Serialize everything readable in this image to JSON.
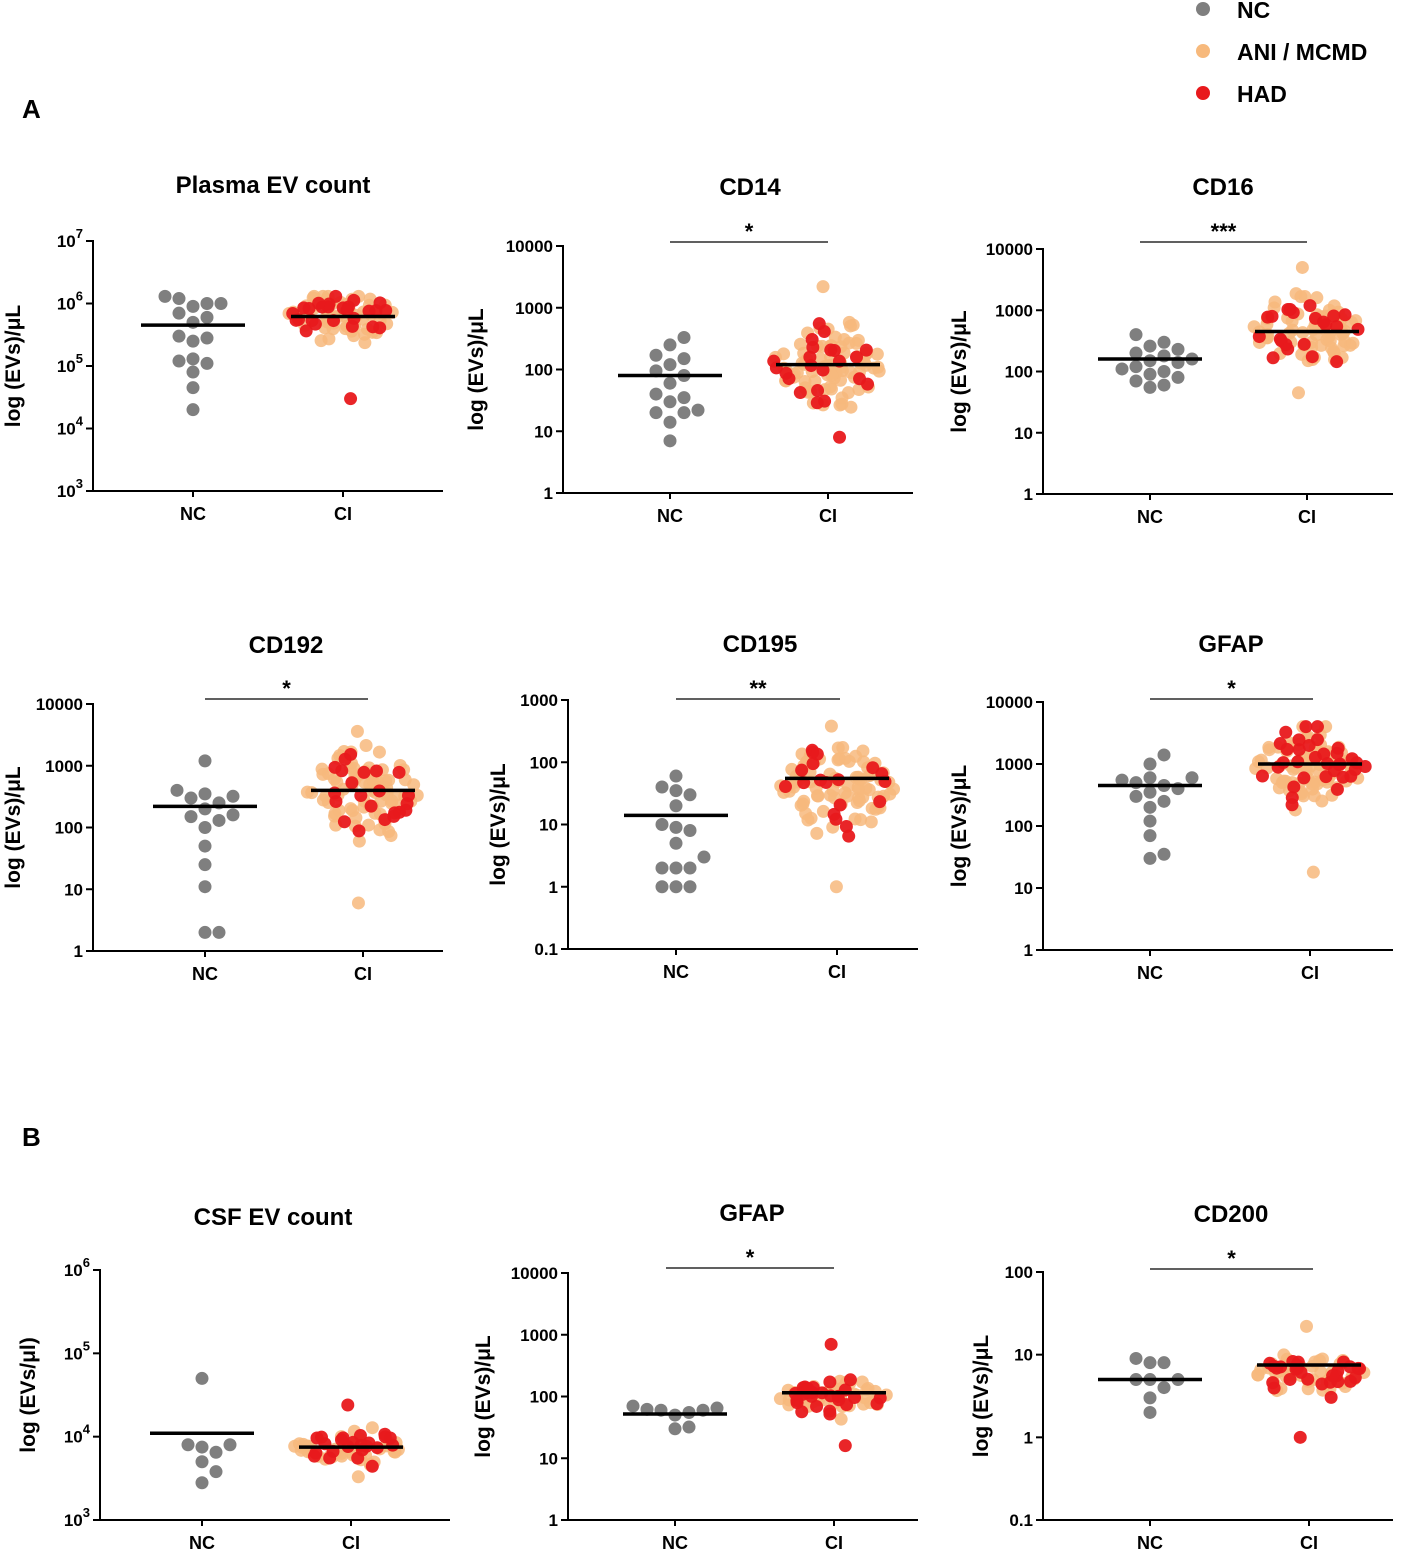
{
  "panels": [
    {
      "label": "A"
    },
    {
      "label": "B"
    }
  ],
  "legend": [
    {
      "name": "NC",
      "color": "#7f7f7f"
    },
    {
      "name": "ANI / MCMD",
      "color": "#f7b97c"
    },
    {
      "name": "HAD",
      "color": "#e8191c"
    }
  ],
  "chart_data": [
    {
      "type": "scatter",
      "title": "Plasma EV count",
      "ylabel": "log (EVs)/μL",
      "ylim": [
        1000,
        10000000
      ],
      "yticks": [
        {
          "v": 1000,
          "b": "10",
          "e": "3"
        },
        {
          "v": 10000,
          "b": "10",
          "e": "4"
        },
        {
          "v": 100000,
          "b": "10",
          "e": "5"
        },
        {
          "v": 1000000,
          "b": "10",
          "e": "6"
        },
        {
          "v": 10000000,
          "b": "10",
          "e": "7"
        }
      ],
      "categories": [
        "NC",
        "CI"
      ],
      "significance": "",
      "medians": [
        450000,
        620000
      ],
      "NC": [
        20000,
        45000,
        80000,
        110000,
        120000,
        130000,
        250000,
        280000,
        300000,
        500000,
        600000,
        700000,
        900000,
        1000000,
        1000000,
        1200000,
        1300000
      ],
      "CI": {
        "n": 90,
        "lo": 30000,
        "hi": 1300000,
        "center": 620000,
        "spread": 0.55,
        "had_frac": 0.3
      }
    },
    {
      "type": "scatter",
      "title": "CD14",
      "ylabel": "log (EVs)/μL",
      "ylim": [
        1,
        10000
      ],
      "yticks": [
        {
          "v": 1,
          "t": "1"
        },
        {
          "v": 10,
          "t": "10"
        },
        {
          "v": 100,
          "t": "100"
        },
        {
          "v": 1000,
          "t": "1000"
        },
        {
          "v": 10000,
          "t": "10000"
        }
      ],
      "categories": [
        "NC",
        "CI"
      ],
      "significance": "*",
      "medians": [
        80,
        120
      ],
      "NC": [
        7,
        14,
        20,
        20,
        22,
        30,
        35,
        40,
        60,
        80,
        95,
        120,
        150,
        170,
        250,
        330
      ],
      "CI": {
        "n": 100,
        "lo": 8,
        "hi": 2200,
        "center": 120,
        "spread": 0.9,
        "had_frac": 0.25
      }
    },
    {
      "type": "scatter",
      "title": "CD16",
      "ylabel": "log (EVs)/μL",
      "ylim": [
        1,
        10000
      ],
      "yticks": [
        {
          "v": 1,
          "t": "1"
        },
        {
          "v": 10,
          "t": "10"
        },
        {
          "v": 100,
          "t": "100"
        },
        {
          "v": 1000,
          "t": "1000"
        },
        {
          "v": 10000,
          "t": "10000"
        }
      ],
      "categories": [
        "NC",
        "CI"
      ],
      "significance": "***",
      "medians": [
        160,
        450
      ],
      "NC": [
        55,
        60,
        70,
        80,
        90,
        100,
        110,
        120,
        140,
        150,
        160,
        180,
        200,
        230,
        260,
        300,
        400
      ],
      "CI": {
        "n": 100,
        "lo": 45,
        "hi": 5000,
        "center": 450,
        "spread": 0.8,
        "had_frac": 0.25
      }
    },
    {
      "type": "scatter",
      "title": "CD192",
      "ylabel": "log (EVs)/μL",
      "ylim": [
        1,
        10000
      ],
      "yticks": [
        {
          "v": 1,
          "t": "1"
        },
        {
          "v": 10,
          "t": "10"
        },
        {
          "v": 100,
          "t": "100"
        },
        {
          "v": 1000,
          "t": "1000"
        },
        {
          "v": 10000,
          "t": "10000"
        }
      ],
      "categories": [
        "NC",
        "CI"
      ],
      "significance": "*",
      "medians": [
        220,
        400
      ],
      "NC": [
        2,
        2,
        11,
        25,
        50,
        100,
        130,
        150,
        160,
        200,
        250,
        300,
        320,
        350,
        400,
        1200
      ],
      "CI": {
        "n": 100,
        "lo": 6,
        "hi": 3600,
        "center": 350,
        "spread": 1.0,
        "had_frac": 0.25
      }
    },
    {
      "type": "scatter",
      "title": "CD195",
      "ylabel": "log (EVs)/μL",
      "ylim": [
        0.1,
        1000
      ],
      "yticks": [
        {
          "v": 0.1,
          "t": "0.1"
        },
        {
          "v": 1,
          "t": "1"
        },
        {
          "v": 10,
          "t": "10"
        },
        {
          "v": 100,
          "t": "100"
        },
        {
          "v": 1000,
          "t": "1000"
        }
      ],
      "categories": [
        "NC",
        "CI"
      ],
      "significance": "**",
      "medians": [
        14,
        55
      ],
      "NC": [
        1,
        1,
        1,
        2,
        2,
        2,
        3,
        5,
        8,
        9,
        10,
        20,
        30,
        35,
        40,
        60
      ],
      "CI": {
        "n": 100,
        "lo": 1,
        "hi": 380,
        "center": 40,
        "spread": 1.0,
        "had_frac": 0.25
      }
    },
    {
      "type": "scatter",
      "title": "GFAP",
      "ylabel": "log (EVs)/μL",
      "ylim": [
        1,
        10000
      ],
      "yticks": [
        {
          "v": 1,
          "t": "1"
        },
        {
          "v": 10,
          "t": "10"
        },
        {
          "v": 100,
          "t": "100"
        },
        {
          "v": 1000,
          "t": "1000"
        },
        {
          "v": 10000,
          "t": "10000"
        }
      ],
      "categories": [
        "NC",
        "CI"
      ],
      "significance": "*",
      "medians": [
        450,
        1000
      ],
      "NC": [
        30,
        35,
        70,
        120,
        200,
        250,
        300,
        350,
        400,
        450,
        500,
        550,
        600,
        600,
        1000,
        1400
      ],
      "CI": {
        "n": 110,
        "lo": 18,
        "hi": 4000,
        "center": 900,
        "spread": 0.8,
        "had_frac": 0.25
      }
    },
    {
      "type": "scatter",
      "title": "CSF EV count",
      "ylabel": "log (EVs/μl)",
      "ylim": [
        1000,
        1000000
      ],
      "yticks": [
        {
          "v": 1000,
          "b": "10",
          "e": "3"
        },
        {
          "v": 10000,
          "b": "10",
          "e": "4"
        },
        {
          "v": 100000,
          "b": "10",
          "e": "5"
        },
        {
          "v": 1000000,
          "b": "10",
          "e": "6"
        }
      ],
      "categories": [
        "NC",
        "CI"
      ],
      "significance": "",
      "medians": [
        11000,
        7500
      ],
      "NC": [
        2800,
        3800,
        5000,
        6500,
        7500,
        8000,
        8000,
        50000
      ],
      "CI": {
        "n": 70,
        "lo": 3300,
        "hi": 24000,
        "center": 7500,
        "spread": 0.3,
        "had_frac": 0.35
      }
    },
    {
      "type": "scatter",
      "title": "GFAP",
      "ylabel": "log (EVs)/μL",
      "ylim": [
        1,
        10000
      ],
      "yticks": [
        {
          "v": 1,
          "t": "1"
        },
        {
          "v": 10,
          "t": "10"
        },
        {
          "v": 100,
          "t": "100"
        },
        {
          "v": 1000,
          "t": "1000"
        },
        {
          "v": 10000,
          "t": "10000"
        }
      ],
      "categories": [
        "NC",
        "CI"
      ],
      "significance": "*",
      "medians": [
        52,
        115
      ],
      "NC": [
        30,
        32,
        50,
        55,
        60,
        60,
        62,
        65,
        70
      ],
      "CI": {
        "n": 70,
        "lo": 16,
        "hi": 700,
        "center": 100,
        "spread": 0.45,
        "had_frac": 0.35
      }
    },
    {
      "type": "scatter",
      "title": "CD200",
      "ylabel": "log (EVs)/μL",
      "ylim": [
        0.1,
        100
      ],
      "yticks": [
        {
          "v": 0.1,
          "t": "0.1"
        },
        {
          "v": 1,
          "t": "1"
        },
        {
          "v": 10,
          "t": "10"
        },
        {
          "v": 100,
          "t": "100"
        }
      ],
      "categories": [
        "NC",
        "CI"
      ],
      "significance": "*",
      "medians": [
        5,
        7.5
      ],
      "NC": [
        2,
        3,
        4,
        5,
        5,
        5,
        8,
        8,
        9
      ],
      "CI": {
        "n": 70,
        "lo": 1,
        "hi": 22,
        "center": 6,
        "spread": 0.35,
        "had_frac": 0.35
      }
    }
  ]
}
